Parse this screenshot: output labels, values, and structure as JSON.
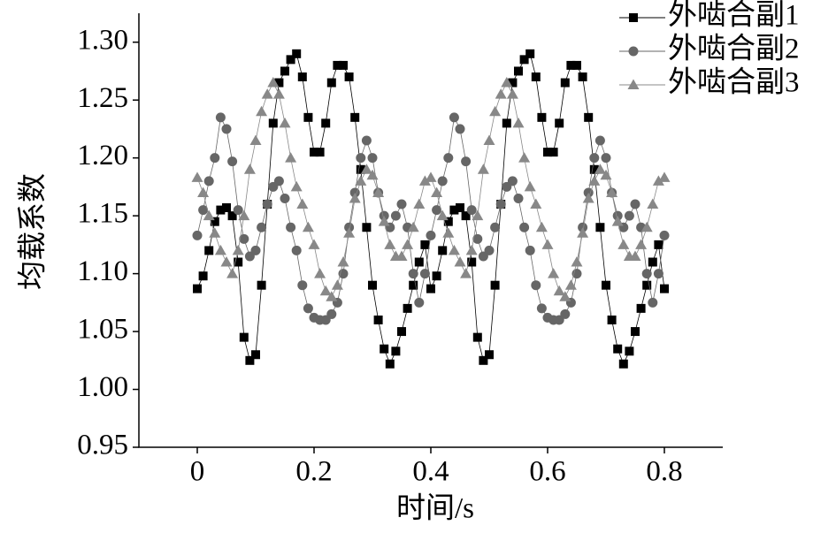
{
  "chart_data": {
    "type": "line",
    "xlabel": "时间/s",
    "ylabel": "均载系数",
    "x": [
      0,
      0.01,
      0.02,
      0.03,
      0.04,
      0.05,
      0.06,
      0.07,
      0.08,
      0.09,
      0.1,
      0.11,
      0.12,
      0.13,
      0.14,
      0.15,
      0.16,
      0.17,
      0.18,
      0.19,
      0.2,
      0.21,
      0.22,
      0.23,
      0.24,
      0.25,
      0.26,
      0.27,
      0.28,
      0.29,
      0.3,
      0.31,
      0.32,
      0.33,
      0.34,
      0.35,
      0.36,
      0.37,
      0.38,
      0.39,
      0.4,
      0.41,
      0.42,
      0.43,
      0.44,
      0.45,
      0.46,
      0.47,
      0.48,
      0.49,
      0.5,
      0.51,
      0.52,
      0.53,
      0.54,
      0.55,
      0.56,
      0.57,
      0.58,
      0.59,
      0.6,
      0.61,
      0.62,
      0.63,
      0.64,
      0.65,
      0.66,
      0.67,
      0.68,
      0.69,
      0.7,
      0.71,
      0.72,
      0.73,
      0.74,
      0.75,
      0.76,
      0.77,
      0.78,
      0.79,
      0.8
    ],
    "series": [
      {
        "name": "外啮合副1",
        "color": "#000000",
        "marker": "square",
        "values": [
          1.087,
          1.098,
          1.12,
          1.145,
          1.155,
          1.157,
          1.15,
          1.11,
          1.045,
          1.025,
          1.03,
          1.09,
          1.16,
          1.23,
          1.265,
          1.275,
          1.285,
          1.29,
          1.27,
          1.235,
          1.205,
          1.205,
          1.23,
          1.265,
          1.28,
          1.28,
          1.27,
          1.235,
          1.19,
          1.14,
          1.09,
          1.06,
          1.035,
          1.022,
          1.033,
          1.05,
          1.07,
          1.09,
          1.11,
          1.125,
          1.087,
          1.098,
          1.12,
          1.145,
          1.155,
          1.157,
          1.15,
          1.11,
          1.045,
          1.025,
          1.03,
          1.09,
          1.16,
          1.23,
          1.265,
          1.275,
          1.285,
          1.29,
          1.27,
          1.235,
          1.205,
          1.205,
          1.23,
          1.265,
          1.28,
          1.28,
          1.27,
          1.235,
          1.19,
          1.14,
          1.09,
          1.06,
          1.035,
          1.022,
          1.033,
          1.05,
          1.07,
          1.09,
          1.11,
          1.125,
          1.087
        ]
      },
      {
        "name": "外啮合副2",
        "color": "#666666",
        "marker": "circle",
        "values": [
          1.133,
          1.155,
          1.18,
          1.2,
          1.235,
          1.225,
          1.197,
          1.155,
          1.13,
          1.115,
          1.12,
          1.14,
          1.16,
          1.175,
          1.18,
          1.165,
          1.14,
          1.12,
          1.09,
          1.07,
          1.062,
          1.06,
          1.06,
          1.065,
          1.075,
          1.1,
          1.14,
          1.17,
          1.2,
          1.215,
          1.2,
          1.17,
          1.15,
          1.14,
          1.15,
          1.16,
          1.14,
          1.1,
          1.075,
          1.1,
          1.133,
          1.155,
          1.18,
          1.2,
          1.235,
          1.225,
          1.197,
          1.155,
          1.13,
          1.115,
          1.12,
          1.14,
          1.16,
          1.175,
          1.18,
          1.165,
          1.14,
          1.12,
          1.09,
          1.07,
          1.062,
          1.06,
          1.06,
          1.065,
          1.075,
          1.1,
          1.14,
          1.17,
          1.2,
          1.215,
          1.2,
          1.17,
          1.15,
          1.14,
          1.15,
          1.16,
          1.14,
          1.1,
          1.075,
          1.1,
          1.133
        ]
      },
      {
        "name": "外啮合副3",
        "color": "#888888",
        "marker": "triangle",
        "values": [
          1.183,
          1.17,
          1.15,
          1.135,
          1.12,
          1.11,
          1.1,
          1.12,
          1.15,
          1.19,
          1.215,
          1.24,
          1.255,
          1.265,
          1.255,
          1.23,
          1.2,
          1.175,
          1.16,
          1.14,
          1.125,
          1.1,
          1.085,
          1.08,
          1.09,
          1.11,
          1.135,
          1.165,
          1.18,
          1.19,
          1.185,
          1.17,
          1.145,
          1.125,
          1.115,
          1.115,
          1.125,
          1.14,
          1.16,
          1.18,
          1.183,
          1.17,
          1.15,
          1.135,
          1.12,
          1.11,
          1.1,
          1.12,
          1.15,
          1.19,
          1.215,
          1.24,
          1.255,
          1.265,
          1.255,
          1.23,
          1.2,
          1.175,
          1.16,
          1.14,
          1.125,
          1.1,
          1.085,
          1.08,
          1.09,
          1.11,
          1.135,
          1.165,
          1.18,
          1.19,
          1.185,
          1.17,
          1.145,
          1.125,
          1.115,
          1.115,
          1.125,
          1.14,
          1.16,
          1.18,
          1.183
        ]
      }
    ],
    "xlim": [
      -0.1,
      0.9
    ],
    "xticks": [
      0,
      0.2,
      0.4,
      0.6,
      0.8
    ],
    "ylim": [
      0.95,
      1.325
    ],
    "yticks": [
      0.95,
      {
        "value": 1.0,
        "label": "1.00"
      },
      1.05,
      {
        "value": 1.1,
        "label": "1.10"
      },
      1.15,
      {
        "value": 1.2,
        "label": "1.20"
      },
      1.25,
      {
        "value": 1.3,
        "label": "1.30"
      }
    ],
    "legend": "upper right",
    "grid": false
  }
}
